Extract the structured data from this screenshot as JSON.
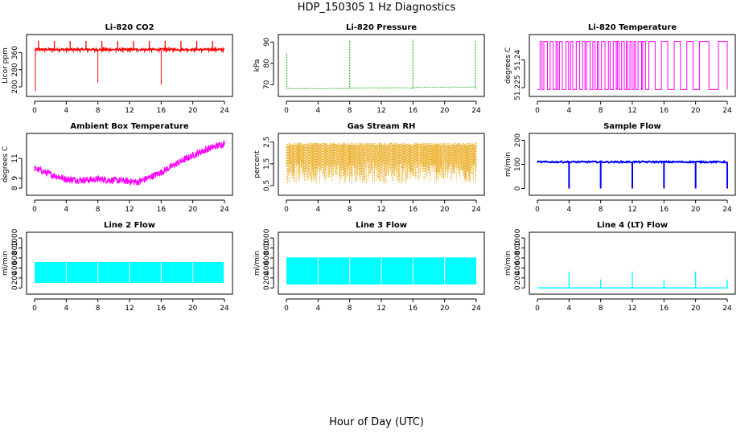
{
  "title": "HDP_150305  1 Hz Diagnostics",
  "xlabel": "Hour of Day (UTC)",
  "chart_data": [
    {
      "type": "line",
      "title": "Li-820 CO2",
      "ylabel": "Licor ppm",
      "color": "#ff0000",
      "xlim": [
        0,
        24
      ],
      "ylim": [
        170,
        430
      ],
      "xticks": [
        0,
        4,
        8,
        12,
        16,
        20,
        24
      ],
      "yticks": [
        200,
        280,
        360
      ],
      "pattern": "co2",
      "series": [
        {
          "base": 375,
          "spike_high": 415,
          "dips": [
            [
              8,
              220
            ],
            [
              16,
              210
            ],
            [
              0.1,
              180
            ]
          ]
        }
      ]
    },
    {
      "type": "line",
      "title": "Li-820 Pressure",
      "ylabel": "kPa",
      "color": "#00aa00",
      "xlim": [
        0,
        24
      ],
      "ylim": [
        66,
        92
      ],
      "xticks": [
        0,
        4,
        8,
        12,
        16,
        20,
        24
      ],
      "yticks": [
        70,
        80,
        90
      ],
      "pattern": "pressure",
      "series": [
        {
          "base": 68.2,
          "spikes": [
            [
              0.05,
              85
            ],
            [
              8,
              90.5
            ],
            [
              16,
              91
            ],
            [
              23.9,
              90.5
            ]
          ]
        }
      ]
    },
    {
      "type": "line",
      "title": "Li-820 Temperature",
      "ylabel": "degrees C",
      "color": "#ff00ff",
      "xlim": [
        0,
        24
      ],
      "ylim": [
        51.222,
        51.252
      ],
      "xticks": [
        0,
        4,
        8,
        12,
        16,
        20,
        24
      ],
      "yticks": [
        51.225,
        51.24
      ],
      "pattern": "square",
      "series": [
        {
          "low": 51.224,
          "high": 51.25
        }
      ]
    },
    {
      "type": "line",
      "title": "Ambient Box Temperature",
      "ylabel": "degrees C",
      "color": "#ff00ff",
      "xlim": [
        0,
        24
      ],
      "ylim": [
        7.6,
        13.2
      ],
      "xticks": [
        0,
        4,
        8,
        12,
        16,
        20,
        24
      ],
      "yticks": [
        8,
        9,
        11
      ],
      "pattern": "noisy_curve",
      "series": [
        {
          "x": [
            0,
            2,
            4,
            6,
            8,
            10,
            12,
            13,
            14,
            16,
            18,
            20,
            22,
            24
          ],
          "y": [
            10.0,
            9.4,
            8.9,
            8.8,
            8.9,
            8.8,
            8.7,
            8.6,
            8.9,
            9.6,
            10.5,
            11.3,
            12.0,
            12.5
          ],
          "noise": 0.35
        }
      ]
    },
    {
      "type": "line",
      "title": "Gas Stream RH",
      "ylabel": "percent",
      "color": "#e8a000",
      "xlim": [
        0,
        24
      ],
      "ylim": [
        0.2,
        2.75
      ],
      "xticks": [
        0,
        4,
        8,
        12,
        16,
        20,
        24
      ],
      "yticks": [
        0.5,
        1.5,
        2.5
      ],
      "pattern": "band",
      "series": [
        {
          "top": 2.4,
          "bottom_mean": 1.2,
          "min": 0.3
        }
      ]
    },
    {
      "type": "line",
      "title": "Sample Flow",
      "ylabel": "ml/min",
      "color": "#0000ff",
      "xlim": [
        0,
        24
      ],
      "ylim": [
        -15,
        215
      ],
      "xticks": [
        0,
        4,
        8,
        12,
        16,
        20,
        24
      ],
      "yticks": [
        0,
        100,
        200
      ],
      "pattern": "flow_dips",
      "series": [
        {
          "base": 110,
          "dips": [
            4,
            8,
            12,
            16,
            20,
            24
          ],
          "dip_min": 0
        }
      ]
    },
    {
      "type": "area",
      "title": "Line 2 Flow",
      "ylabel": "ml/min",
      "color": "#00ffff",
      "xlim": [
        0,
        24
      ],
      "ylim": [
        -60,
        1050
      ],
      "xticks": [
        0,
        4,
        8,
        12,
        16,
        20,
        24
      ],
      "yticks": [
        0,
        200,
        400,
        600,
        800,
        1000
      ],
      "pattern": "block",
      "series": [
        {
          "top": 520,
          "bottom": 100,
          "gaps": [
            4,
            8,
            12,
            16,
            20
          ],
          "end": 23.9
        }
      ]
    },
    {
      "type": "area",
      "title": "Line 3 Flow",
      "ylabel": "ml/min",
      "color": "#00ffff",
      "xlim": [
        0,
        24
      ],
      "ylim": [
        -60,
        1050
      ],
      "xticks": [
        0,
        4,
        8,
        12,
        16,
        20,
        24
      ],
      "yticks": [
        0,
        200,
        400,
        600,
        800,
        1000
      ],
      "pattern": "block",
      "series": [
        {
          "top": 610,
          "bottom": 70,
          "gaps": [
            4,
            8,
            12,
            16,
            20
          ],
          "end": 24
        }
      ]
    },
    {
      "type": "line",
      "title": "Line 4 (LT) Flow",
      "ylabel": "ml/min",
      "color": "#00ffff",
      "xlim": [
        0,
        24
      ],
      "ylim": [
        -60,
        1050
      ],
      "xticks": [
        0,
        4,
        8,
        12,
        16,
        20,
        24
      ],
      "yticks": [
        0,
        200,
        400,
        600,
        800,
        1000
      ],
      "pattern": "spikes",
      "series": [
        {
          "base": 0,
          "spikes": [
            [
              4,
              330
            ],
            [
              8,
              170
            ],
            [
              12,
              330
            ],
            [
              16,
              170
            ],
            [
              20,
              330
            ],
            [
              24,
              170
            ]
          ]
        }
      ]
    }
  ]
}
